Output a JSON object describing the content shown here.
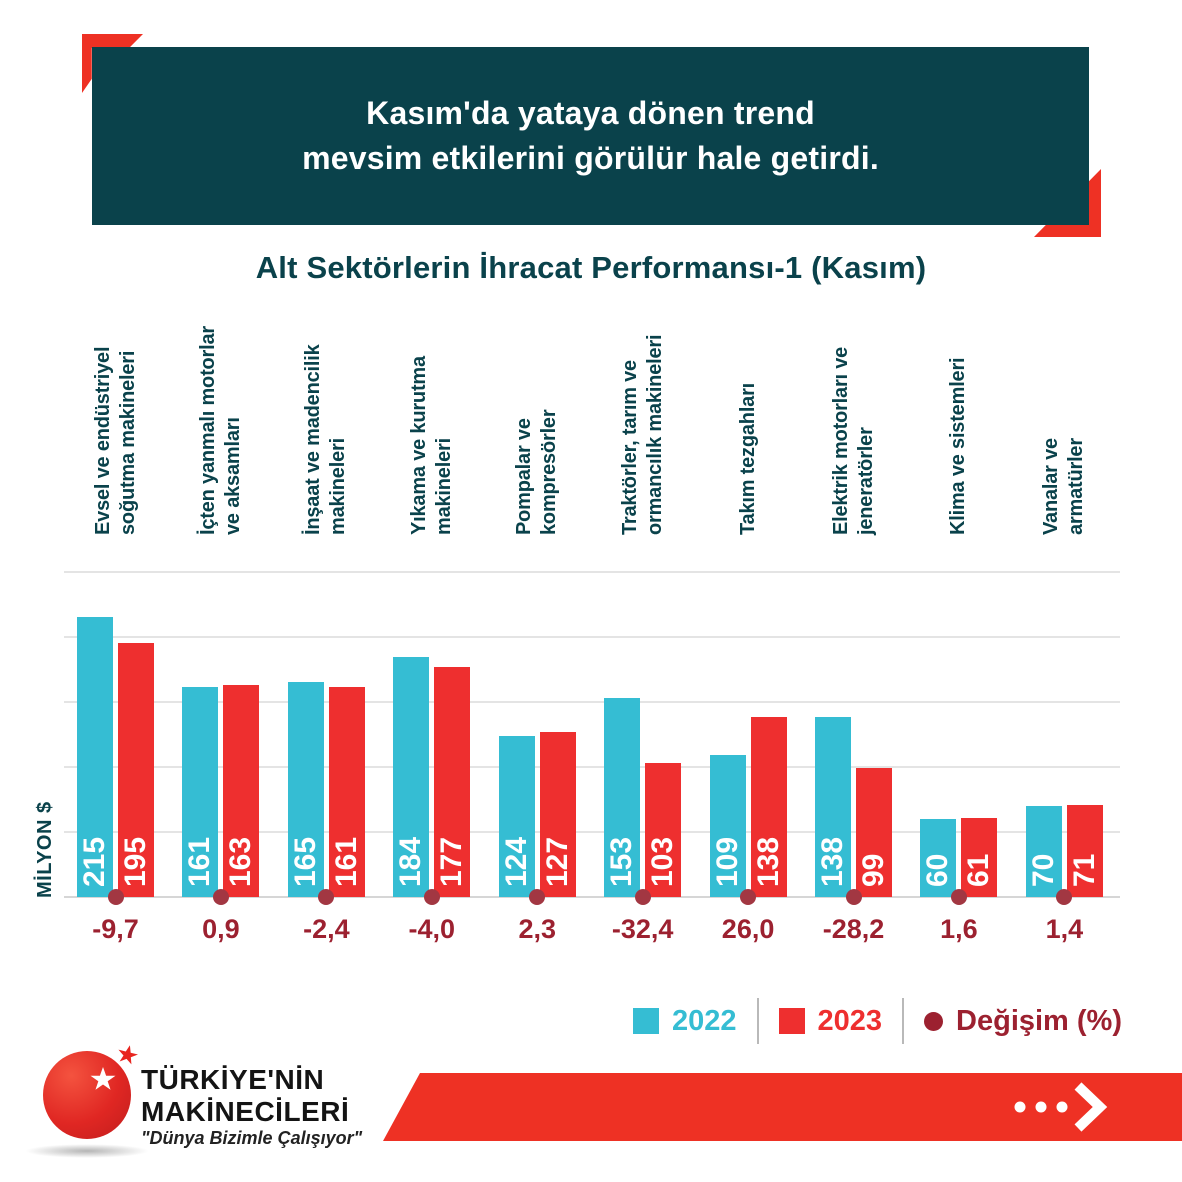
{
  "header": {
    "title_line1": "Kasım'da yataya dönen trend",
    "title_line2": "mevsim etkilerini görülür hale getirdi."
  },
  "chart_data": {
    "type": "bar",
    "title": "Alt Sektörlerin İhracat Performansı-1 (Kasım)",
    "ylabel": "MİLYON $",
    "ylim": [
      0,
      250
    ],
    "grid": true,
    "grid_step": 50,
    "legend_position": "bottom-right",
    "categories": [
      "Evsel ve endüstriyel\nsoğutma makineleri",
      "İçten yanmalı motorlar\nve aksamları",
      "İnşaat ve madencilik\nmakineleri",
      "Yıkama ve kurutma\nmakineleri",
      "Pompalar ve\nkompresörler",
      "Traktörler, tarım ve\normancılık makineleri",
      "Takım tezgahları",
      "Elektrik motorları ve\njeneratörler",
      "Klima ve sistemleri",
      "Vanalar ve\narmatürler"
    ],
    "series": [
      {
        "name": "2022",
        "color": "#35bdd3",
        "values": [
          215,
          161,
          165,
          184,
          124,
          153,
          109,
          138,
          60,
          70
        ]
      },
      {
        "name": "2023",
        "color": "#ee2f2f",
        "values": [
          195,
          163,
          161,
          177,
          127,
          103,
          138,
          99,
          61,
          71
        ]
      }
    ],
    "change": {
      "name": "Değişim (%)",
      "color": "#9c2130",
      "dot_color": "#a23742",
      "values": [
        "-9,7",
        "0,9",
        "-2,4",
        "-4,0",
        "2,3",
        "-32,4",
        "26,0",
        "-28,2",
        "1,6",
        "1,4"
      ]
    }
  },
  "legend": {
    "items": [
      {
        "label": "2022",
        "color": "#35bdd3",
        "shape": "square"
      },
      {
        "label": "2023",
        "color": "#ee2f2f",
        "shape": "square"
      },
      {
        "label": "Değişim (%)",
        "color": "#9c2130",
        "shape": "circle"
      }
    ]
  },
  "footer": {
    "brand_line1": "TÜRKİYE'NİN",
    "brand_line2": "MAKİNECİLERİ",
    "tagline": "\"Dünya Bizimle Çalışıyor\""
  },
  "colors": {
    "teal": "#0a424b",
    "cyan": "#35bdd3",
    "red": "#ee2f2f",
    "accent_red": "#ee3124",
    "maroon": "#9c2130",
    "dot_maroon": "#a23742",
    "gridline": "#e4e4e4",
    "baseline": "#d6d6d6"
  }
}
